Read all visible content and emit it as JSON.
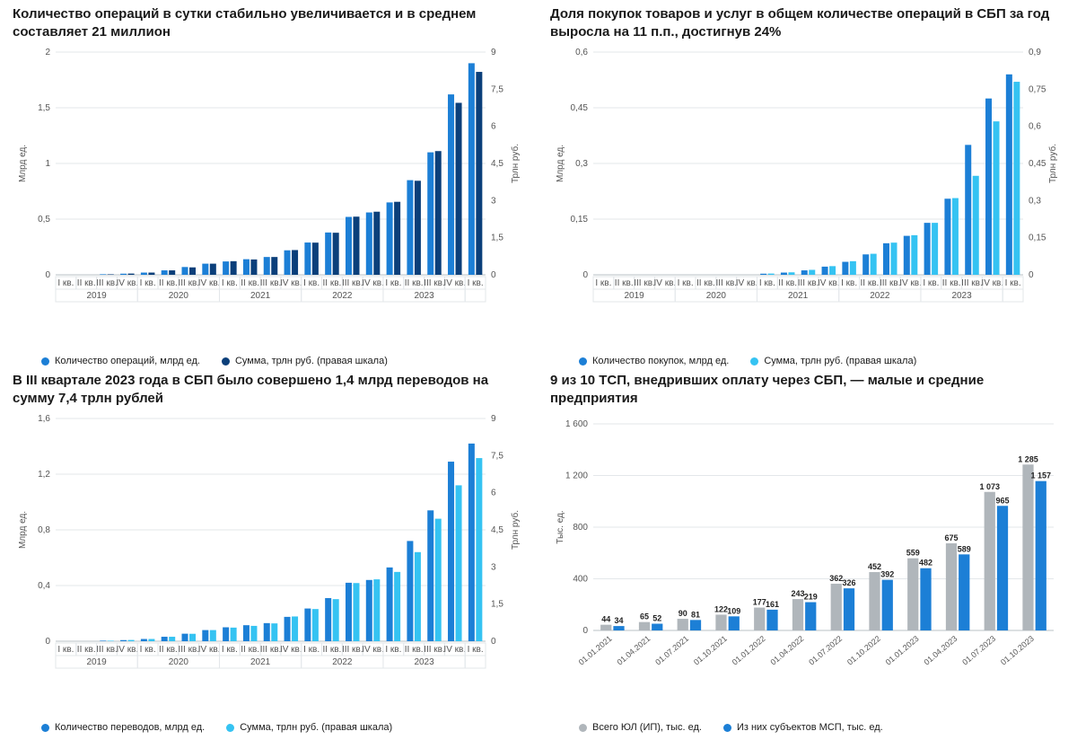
{
  "colors": {
    "grid": "#e3e7ea",
    "axis": "#b9c0c6",
    "text": "#1a1a1a",
    "blue_mid": "#1c7fd6",
    "blue_dark": "#0b3f7a",
    "cyan": "#35c3f2",
    "gray_bar": "#b0b6bb"
  },
  "quarters": {
    "labels": [
      "I кв.",
      "II кв.",
      "III кв.",
      "IV кв.",
      "I кв.",
      "II кв.",
      "III кв.",
      "IV кв.",
      "I кв.",
      "II кв.",
      "III кв.",
      "IV кв.",
      "I кв.",
      "II кв.",
      "III кв.",
      "IV кв.",
      "I кв.",
      "II кв.",
      "III кв.",
      "IV кв.",
      "I кв."
    ],
    "year_groups": [
      {
        "label": "2019",
        "span": 4
      },
      {
        "label": "2020",
        "span": 4
      },
      {
        "label": "2021",
        "span": 4
      },
      {
        "label": "2022",
        "span": 4
      },
      {
        "label": "2023",
        "span": 4
      }
    ]
  },
  "chart1": {
    "title": "Количество операций в сутки стабильно увеличивается и в среднем составляет 21 миллион",
    "type": "bar",
    "y_left": {
      "label": "Млрд ед.",
      "min": 0,
      "max": 2,
      "step": 0.5
    },
    "y_right": {
      "label": "Трлн руб.",
      "min": 0,
      "max": 9,
      "step": 1.5
    },
    "series": [
      {
        "name": "Количество операций, млрд ед.",
        "color": "#1c7fd6",
        "axis": "left",
        "values": [
          0,
          0,
          0.005,
          0.01,
          0.02,
          0.04,
          0.07,
          0.1,
          0.12,
          0.14,
          0.16,
          0.22,
          0.29,
          0.38,
          0.52,
          0.56,
          0.65,
          0.85,
          1.1,
          1.62,
          1.9
        ]
      },
      {
        "name": "Сумма, трлн руб. (правая шкала)",
        "color": "#0b3f7a",
        "axis": "right",
        "values": [
          0,
          0,
          0.02,
          0.05,
          0.09,
          0.18,
          0.3,
          0.45,
          0.55,
          0.62,
          0.72,
          1.0,
          1.3,
          1.7,
          2.35,
          2.55,
          2.95,
          3.8,
          5.0,
          6.95,
          8.2
        ]
      }
    ],
    "legend": [
      "Количество операций, млрд ед.",
      "Сумма, трлн руб. (правая шкала)"
    ]
  },
  "chart2": {
    "title": "Доля покупок товаров и услуг в общем количестве операций в СБП за год выросла на 11 п.п., достигнув 24%",
    "type": "bar",
    "y_left": {
      "label": "Млрд ед.",
      "min": 0,
      "max": 0.6,
      "step": 0.15
    },
    "y_right": {
      "label": "Трлн руб.",
      "min": 0,
      "max": 0.9,
      "step": 0.15
    },
    "series": [
      {
        "name": "Количество покупок, млрд ед.",
        "color": "#1c7fd6",
        "axis": "left",
        "values": [
          0,
          0,
          0,
          0,
          0,
          0,
          0,
          0,
          0.003,
          0.006,
          0.012,
          0.022,
          0.035,
          0.055,
          0.085,
          0.105,
          0.14,
          0.205,
          0.35,
          0.475,
          0.54
        ]
      },
      {
        "name": "Сумма, трлн руб. (правая шкала)",
        "color": "#35c3f2",
        "axis": "right",
        "values": [
          0,
          0,
          0,
          0,
          0,
          0,
          0,
          0,
          0.005,
          0.01,
          0.02,
          0.035,
          0.055,
          0.085,
          0.13,
          0.16,
          0.21,
          0.31,
          0.4,
          0.62,
          0.78
        ]
      }
    ],
    "legend": [
      "Количество покупок, млрд ед.",
      "Сумма, трлн руб. (правая шкала)"
    ]
  },
  "chart3": {
    "title": "В III квартале 2023 года в СБП было совершено 1,4 млрд переводов на сумму 7,4 трлн рублей",
    "type": "bar",
    "y_left": {
      "label": "Млрд ед.",
      "min": 0,
      "max": 1.6,
      "step": 0.4
    },
    "y_right": {
      "label": "Трлн руб.",
      "min": 0,
      "max": 9,
      "step": 1.5
    },
    "series": [
      {
        "name": "Количество переводов, млрд ед.",
        "color": "#1c7fd6",
        "axis": "left",
        "values": [
          0,
          0,
          0.004,
          0.008,
          0.016,
          0.032,
          0.054,
          0.08,
          0.1,
          0.115,
          0.13,
          0.175,
          0.235,
          0.31,
          0.42,
          0.44,
          0.53,
          0.72,
          0.94,
          1.29,
          1.42
        ]
      },
      {
        "name": "Сумма, трлн руб. (правая шкала)",
        "color": "#35c3f2",
        "axis": "right",
        "values": [
          0,
          0,
          0.02,
          0.05,
          0.09,
          0.18,
          0.3,
          0.45,
          0.55,
          0.62,
          0.72,
          1.0,
          1.3,
          1.7,
          2.35,
          2.5,
          2.8,
          3.6,
          4.95,
          6.3,
          7.4
        ]
      }
    ],
    "legend": [
      "Количество переводов, млрд ед.",
      "Сумма, трлн руб. (правая шкала)"
    ]
  },
  "chart4": {
    "title": "9 из 10 ТСП, внедривших оплату через СБП, — малые и средние предприятия",
    "type": "bar",
    "y_left": {
      "label": "Тыс. ед.",
      "min": 0,
      "max": 1600,
      "step": 400
    },
    "x_labels": [
      "01.01.2021",
      "01.04.2021",
      "01.07.2021",
      "01.10.2021",
      "01.01.2022",
      "01.04.2022",
      "01.07.2022",
      "01.10.2022",
      "01.01.2023",
      "01.04.2023",
      "01.07.2023",
      "01.10.2023"
    ],
    "series": [
      {
        "name": "Всего ЮЛ (ИП), тыс. ед.",
        "color": "#b0b6bb",
        "axis": "left",
        "values": [
          44,
          65,
          90,
          122,
          177,
          243,
          362,
          452,
          559,
          675,
          1073,
          1285
        ]
      },
      {
        "name": "Из них субъектов МСП, тыс. ед.",
        "color": "#1c7fd6",
        "axis": "left",
        "values": [
          34,
          52,
          81,
          109,
          161,
          219,
          326,
          392,
          482,
          589,
          965,
          1157
        ]
      }
    ],
    "legend": [
      "Всего ЮЛ (ИП), тыс. ед.",
      "Из них субъектов МСП, тыс. ед."
    ],
    "show_values": true
  }
}
